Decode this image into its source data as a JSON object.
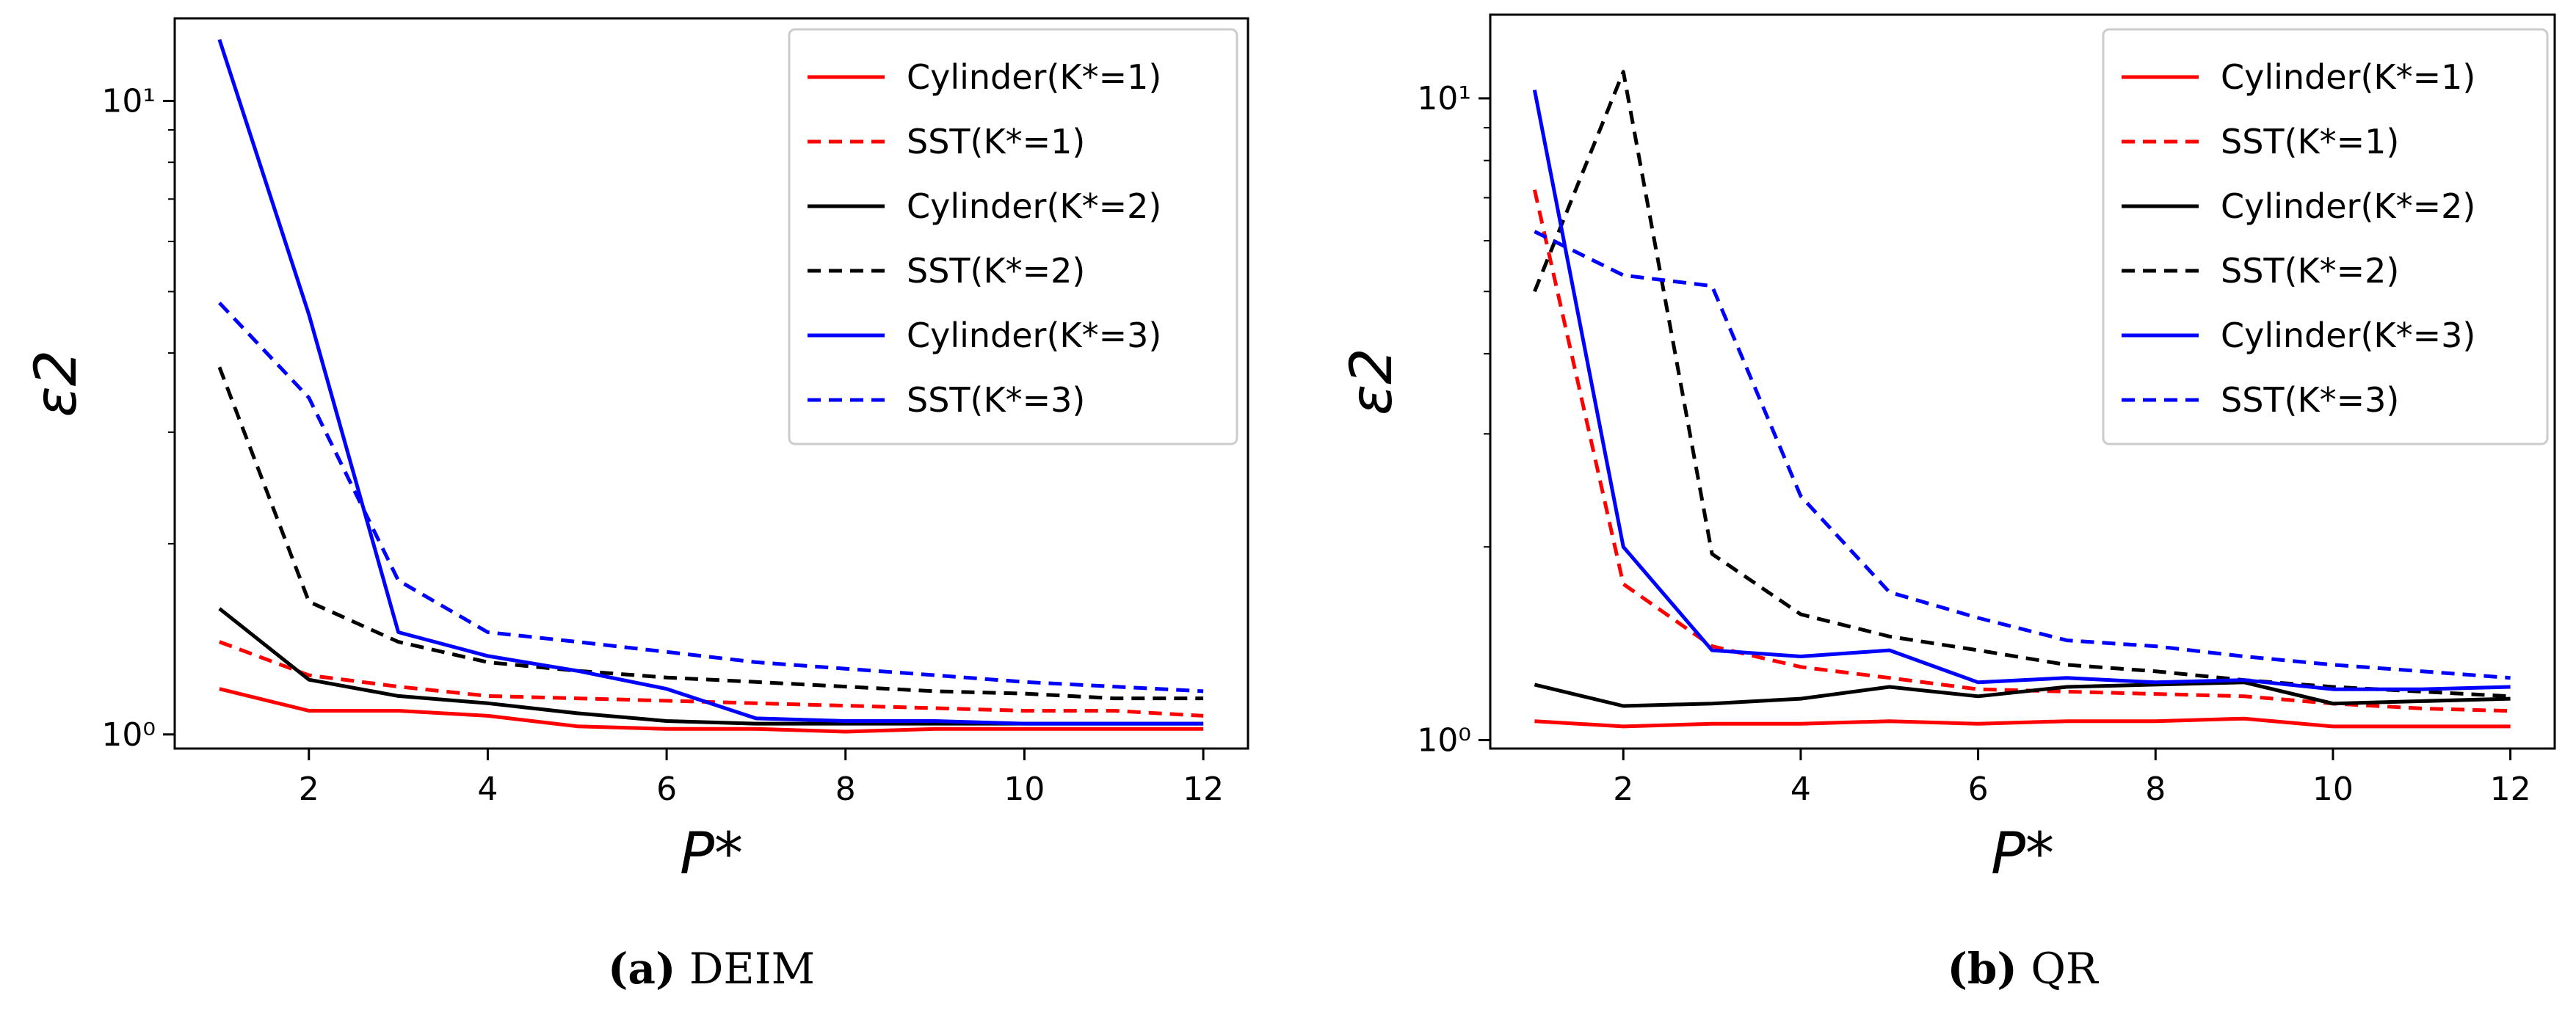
{
  "chart_data": [
    {
      "type": "line",
      "title": "",
      "caption_tag": "(a)",
      "caption_label": "DEIM",
      "xlabel": "P*",
      "ylabel": "ε2",
      "yscale": "log",
      "xlim": [
        0.5,
        12.5
      ],
      "ylim": [
        0.95,
        13.5
      ],
      "xticks": [
        "2",
        "4",
        "6",
        "8",
        "10",
        "12"
      ],
      "xtick_values": [
        2,
        4,
        6,
        8,
        10,
        12
      ],
      "yticks": [
        "10⁰",
        "10¹"
      ],
      "ytick_values": [
        1,
        10
      ],
      "legend_position": "top-right",
      "x": [
        1,
        2,
        3,
        4,
        5,
        6,
        7,
        8,
        9,
        10,
        11,
        12
      ],
      "series": [
        {
          "name": "Cylinder(K*=1)",
          "color": "#ff0000",
          "dash": "solid",
          "values": [
            1.18,
            1.09,
            1.09,
            1.07,
            1.03,
            1.02,
            1.02,
            1.01,
            1.02,
            1.02,
            1.02,
            1.02
          ]
        },
        {
          "name": "SST(K*=1)",
          "color": "#ff0000",
          "dash": "dashed",
          "values": [
            1.4,
            1.24,
            1.19,
            1.15,
            1.14,
            1.13,
            1.12,
            1.11,
            1.1,
            1.09,
            1.09,
            1.07
          ]
        },
        {
          "name": "Cylinder(K*=2)",
          "color": "#000000",
          "dash": "solid",
          "values": [
            1.58,
            1.22,
            1.15,
            1.12,
            1.08,
            1.05,
            1.04,
            1.04,
            1.04,
            1.04,
            1.04,
            1.04
          ]
        },
        {
          "name": "SST(K*=2)",
          "color": "#000000",
          "dash": "dashed",
          "values": [
            3.8,
            1.62,
            1.4,
            1.3,
            1.26,
            1.23,
            1.21,
            1.19,
            1.17,
            1.16,
            1.14,
            1.14
          ]
        },
        {
          "name": "Cylinder(K*=3)",
          "color": "#0000ff",
          "dash": "solid",
          "values": [
            12.5,
            4.6,
            1.45,
            1.33,
            1.26,
            1.18,
            1.06,
            1.05,
            1.05,
            1.04,
            1.04,
            1.04
          ]
        },
        {
          "name": "SST(K*=3)",
          "color": "#0000ff",
          "dash": "dashed",
          "values": [
            4.8,
            3.4,
            1.75,
            1.45,
            1.4,
            1.35,
            1.3,
            1.27,
            1.24,
            1.21,
            1.19,
            1.17
          ]
        }
      ]
    },
    {
      "type": "line",
      "title": "",
      "caption_tag": "(b)",
      "caption_label": "QR",
      "xlabel": "P*",
      "ylabel": "ε2",
      "yscale": "log",
      "xlim": [
        0.5,
        12.5
      ],
      "ylim": [
        0.97,
        13.5
      ],
      "xticks": [
        "2",
        "4",
        "6",
        "8",
        "10",
        "12"
      ],
      "xtick_values": [
        2,
        4,
        6,
        8,
        10,
        12
      ],
      "yticks": [
        "10⁰",
        "10¹"
      ],
      "ytick_values": [
        1,
        10
      ],
      "legend_position": "top-right",
      "x": [
        1,
        2,
        3,
        4,
        5,
        6,
        7,
        8,
        9,
        10,
        11,
        12
      ],
      "series": [
        {
          "name": "Cylinder(K*=1)",
          "color": "#ff0000",
          "dash": "solid",
          "values": [
            1.07,
            1.05,
            1.06,
            1.06,
            1.07,
            1.06,
            1.07,
            1.07,
            1.08,
            1.05,
            1.05,
            1.05
          ]
        },
        {
          "name": "SST(K*=1)",
          "color": "#ff0000",
          "dash": "dashed",
          "values": [
            7.2,
            1.75,
            1.4,
            1.3,
            1.25,
            1.2,
            1.19,
            1.18,
            1.17,
            1.14,
            1.12,
            1.11
          ]
        },
        {
          "name": "Cylinder(K*=2)",
          "color": "#000000",
          "dash": "solid",
          "values": [
            1.22,
            1.13,
            1.14,
            1.16,
            1.21,
            1.17,
            1.21,
            1.22,
            1.23,
            1.14,
            1.15,
            1.16
          ]
        },
        {
          "name": "SST(K*=2)",
          "color": "#000000",
          "dash": "dashed",
          "values": [
            5.0,
            11.0,
            1.95,
            1.57,
            1.45,
            1.38,
            1.31,
            1.28,
            1.24,
            1.21,
            1.19,
            1.17
          ]
        },
        {
          "name": "Cylinder(K*=3)",
          "color": "#0000ff",
          "dash": "solid",
          "values": [
            10.3,
            2.0,
            1.38,
            1.35,
            1.38,
            1.23,
            1.25,
            1.23,
            1.24,
            1.2,
            1.2,
            1.21
          ]
        },
        {
          "name": "SST(K*=3)",
          "color": "#0000ff",
          "dash": "dashed",
          "values": [
            6.2,
            5.3,
            5.1,
            2.4,
            1.7,
            1.55,
            1.43,
            1.4,
            1.35,
            1.31,
            1.28,
            1.25
          ]
        }
      ]
    }
  ]
}
